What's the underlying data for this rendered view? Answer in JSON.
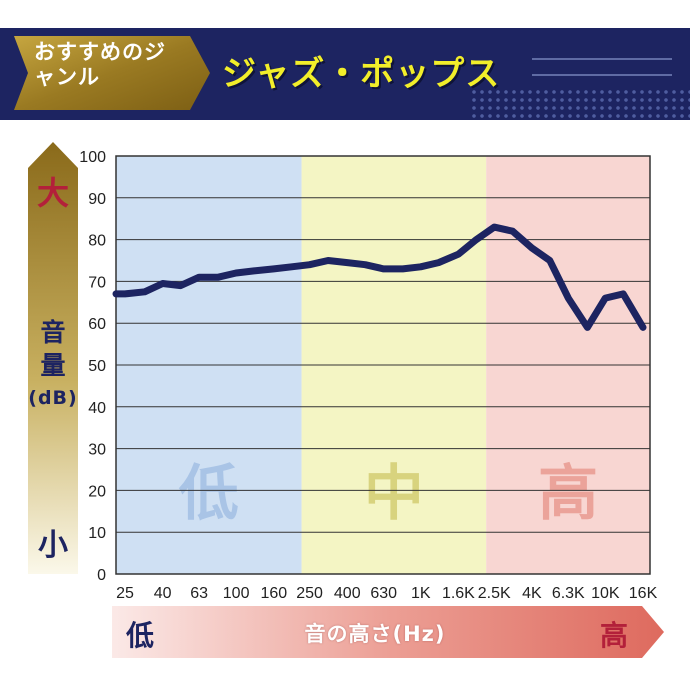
{
  "header": {
    "genre_tag": "おすすめのジャンル",
    "genre_name": "ジャズ・ポップス"
  },
  "y_side": {
    "high_label": "大",
    "low_label": "小",
    "axis_title": "音量",
    "axis_unit": "(dB)"
  },
  "x_side": {
    "low_label": "低",
    "high_label": "高",
    "axis_title": "音の高さ(Hz)"
  },
  "colors": {
    "navy": "#1d2461",
    "gold": "#8a6a1a",
    "red": "#b3203a",
    "band_low": "#cfe0f3",
    "band_mid": "#f4f5c4",
    "band_high": "#f8d6d2"
  },
  "chart_data": {
    "type": "line",
    "title": "",
    "xlabel": "音の高さ(Hz)",
    "ylabel": "音量(dB)",
    "ylim": [
      0,
      100
    ],
    "yticks": [
      0,
      10,
      20,
      30,
      40,
      50,
      60,
      70,
      80,
      90,
      100
    ],
    "x_categories": [
      "25",
      "40",
      "63",
      "100",
      "160",
      "250",
      "400",
      "630",
      "1K",
      "1.6K",
      "2.5K",
      "4K",
      "6.3K",
      "10K",
      "16K"
    ],
    "bands": [
      {
        "label": "低",
        "from": "25",
        "to": "250",
        "color": "#cfe0f3",
        "text_color": "#a9c4e6"
      },
      {
        "label": "中",
        "from": "250",
        "to": "2.5K",
        "color": "#f4f5c4",
        "text_color": "#d8d37e"
      },
      {
        "label": "高",
        "from": "2.5K",
        "to": "16K",
        "color": "#f8d6d2",
        "text_color": "#eba39a"
      }
    ],
    "grid": true,
    "series": [
      {
        "color": "#1d2461",
        "x": [
          20,
          25,
          32,
          40,
          50,
          63,
          80,
          100,
          125,
          160,
          200,
          250,
          315,
          400,
          500,
          630,
          800,
          1000,
          1250,
          1600,
          2000,
          2500,
          3150,
          4000,
          5000,
          6300,
          8000,
          10000,
          12500,
          16000
        ],
        "y": [
          67,
          67,
          67.5,
          69.5,
          69,
          71,
          71,
          72,
          72.5,
          73,
          73.5,
          74,
          75,
          74.5,
          74,
          73,
          73,
          73.5,
          74.5,
          76.5,
          80,
          83,
          82,
          78,
          75,
          66,
          59,
          66,
          67,
          59
        ]
      }
    ]
  }
}
